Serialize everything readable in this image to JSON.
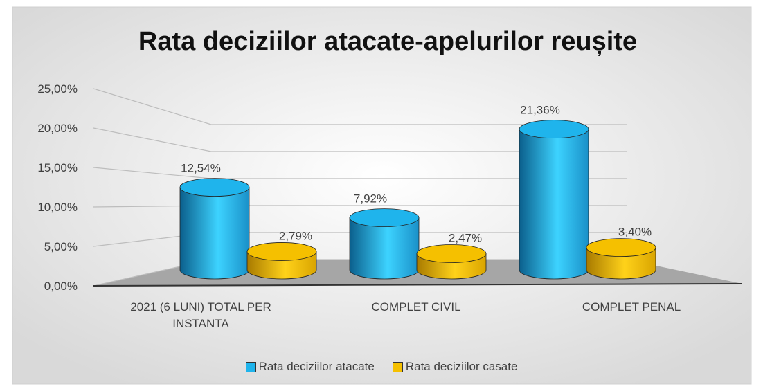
{
  "chart_data": {
    "type": "bar3d",
    "title": "Rata deciziilor atacate-apelurilor reușite",
    "categories": [
      "2021 (6 LUNI) TOTAL PER INSTANTA",
      "COMPLET CIVIL",
      "COMPLET PENAL"
    ],
    "series": [
      {
        "name": "Rata deciziilor atacate",
        "color": "#1fb4ec",
        "values": [
          12.54,
          7.92,
          21.36
        ],
        "value_labels": [
          "12,54%",
          "7,92%",
          "21,36%"
        ]
      },
      {
        "name": "Rata deciziilor casate",
        "color": "#f5c000",
        "values": [
          2.79,
          2.47,
          3.4
        ],
        "value_labels": [
          "2,79%",
          "2,47%",
          "3,40%"
        ]
      }
    ],
    "ylim": [
      0,
      25
    ],
    "yticks": [
      {
        "value": 0,
        "label": "0,00%"
      },
      {
        "value": 5,
        "label": "5,00%"
      },
      {
        "value": 10,
        "label": "10,00%"
      },
      {
        "value": 15,
        "label": "15,00%"
      },
      {
        "value": 20,
        "label": "20,00%"
      },
      {
        "value": 25,
        "label": "25,00%"
      }
    ],
    "grid": true,
    "legend": "bottom"
  }
}
